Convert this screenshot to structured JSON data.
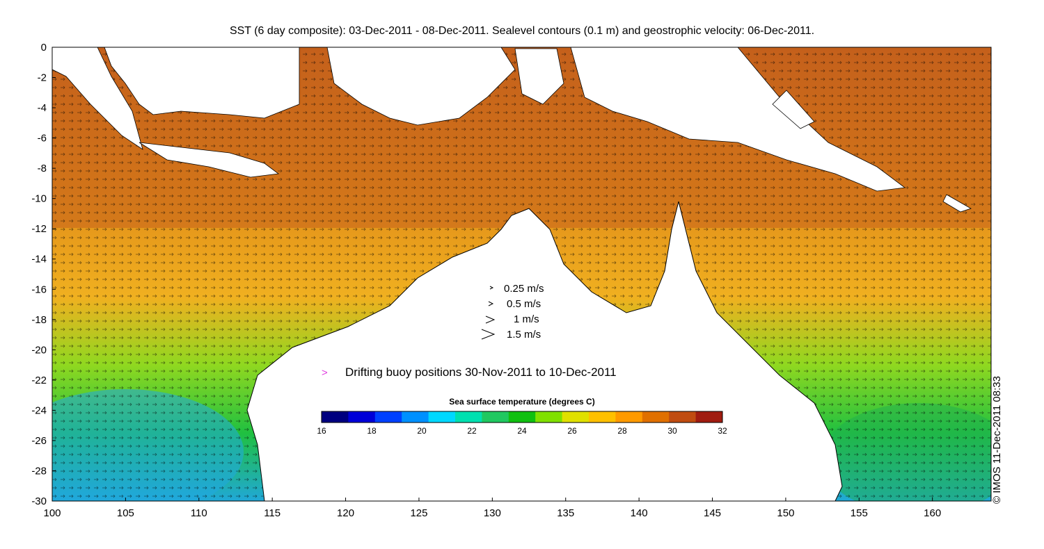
{
  "title": "SST (6 day composite): 03-Dec-2011 - 08-Dec-2011. Sealevel contours (0.1 m) and geostrophic velocity: 06-Dec-2011.",
  "credit": "© IMOS 11-Dec-2011 08:33",
  "map": {
    "lon_range": [
      100,
      164
    ],
    "lat_range": [
      -30,
      0
    ],
    "x_ticks": [
      "100",
      "105",
      "110",
      "115",
      "120",
      "125",
      "130",
      "135",
      "140",
      "145",
      "150",
      "155",
      "160"
    ],
    "y_ticks": [
      "0",
      "-2",
      "-4",
      "-6",
      "-8",
      "-10",
      "-12",
      "-14",
      "-16",
      "-18",
      "-20",
      "-22",
      "-24",
      "-26",
      "-28",
      "-30"
    ],
    "land_color": "#ffffff",
    "ocean_colors": {
      "warm": "#c8641e",
      "mid": "#f0a020",
      "cool": "#2ec020",
      "cold": "#20a8e0"
    }
  },
  "velocity_legend": [
    {
      "label": "0.25 m/s"
    },
    {
      "label": "0.5 m/s"
    },
    {
      "label": "1 m/s"
    },
    {
      "label": "1.5 m/s"
    }
  ],
  "buoy_legend": {
    "symbol": ">",
    "label": "Drifting buoy positions 30-Nov-2011 to 10-Dec-2011",
    "color": "#e040e0"
  },
  "colorbar": {
    "title": "Sea surface temperature (degrees C)",
    "ticks": [
      "16",
      "18",
      "20",
      "22",
      "24",
      "26",
      "28",
      "30",
      "32"
    ],
    "colors": [
      "#00007f",
      "#0000d8",
      "#0040ff",
      "#0090ff",
      "#00d8ff",
      "#00e0b0",
      "#20c860",
      "#10c010",
      "#80e000",
      "#e0e000",
      "#ffc000",
      "#ff9a00",
      "#e07000",
      "#c04c10",
      "#a01c10"
    ]
  }
}
